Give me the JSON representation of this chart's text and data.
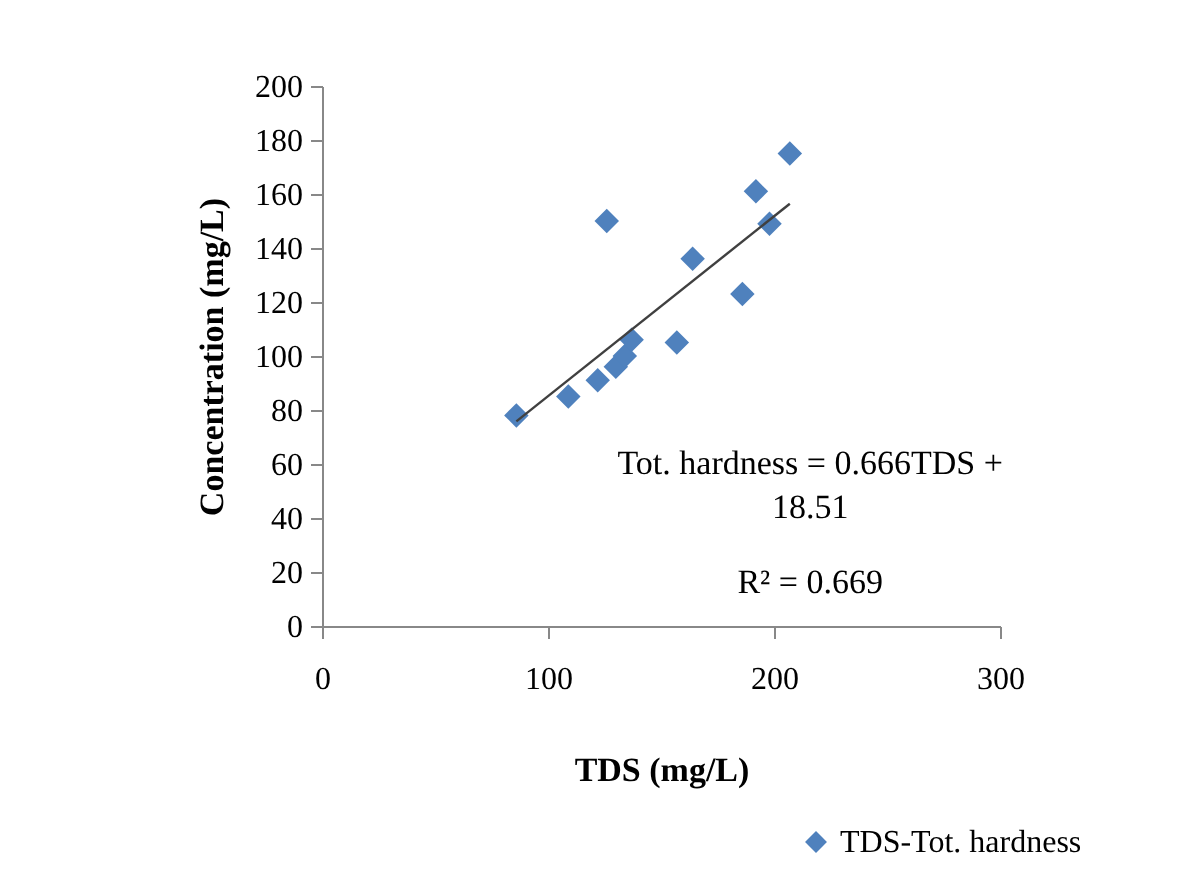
{
  "chart_data": {
    "type": "scatter",
    "xlabel": "TDS (mg/L)",
    "ylabel": "Concentration (mg/L)",
    "xlim": [
      0,
      300
    ],
    "xticks": [
      0,
      100,
      200,
      300
    ],
    "ylim": [
      0,
      200
    ],
    "yticks": [
      0,
      20,
      40,
      60,
      80,
      100,
      120,
      140,
      160,
      180,
      200
    ],
    "grid": false,
    "legend": "bottom right",
    "marker": "diamond",
    "series": [
      {
        "name": "TDS-Tot. hardness",
        "color": "#4f81bd",
        "x": [
          86,
          109,
          122,
          126,
          130,
          134,
          137,
          157,
          164,
          186,
          192,
          198,
          207
        ],
        "values": [
          78,
          85,
          91,
          150,
          96,
          100,
          106,
          105,
          136,
          123,
          161,
          149,
          175
        ]
      },
      {
        "type": "line",
        "marker": "none",
        "color": "#404040",
        "x": [
          86,
          207
        ],
        "values": [
          75.8,
          156.4
        ]
      }
    ],
    "annotations": [
      "Tot. hardness = 0.666TDS + 18.51",
      "R² = 0.669"
    ]
  }
}
